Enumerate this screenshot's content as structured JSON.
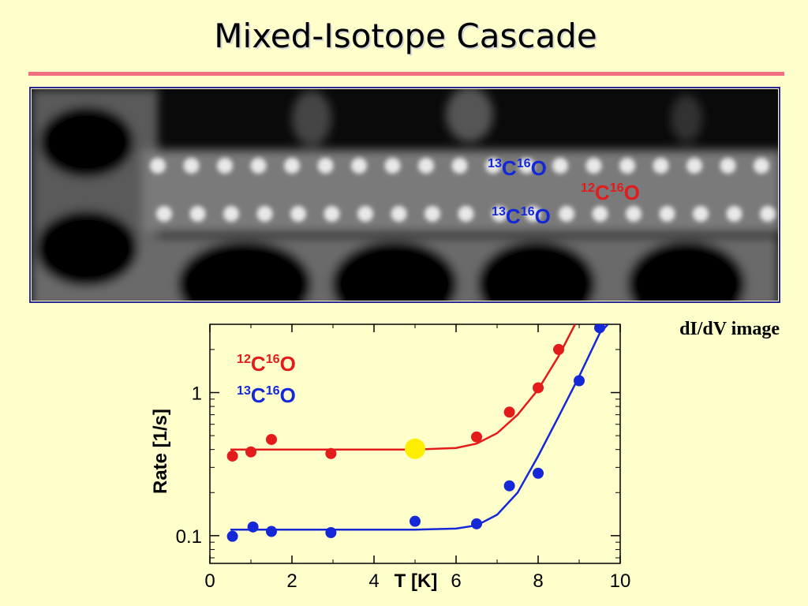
{
  "title": "Mixed-Isotope Cascade",
  "image": {
    "caption": "dI/dV image",
    "labels": [
      {
        "text": [
          "13",
          "C",
          "16",
          "O"
        ],
        "color": "#1428d8"
      },
      {
        "text": [
          "12",
          "C",
          "16",
          "O"
        ],
        "color": "#e31b1b"
      },
      {
        "text": [
          "13",
          "C",
          "16",
          "O"
        ],
        "color": "#1428d8"
      }
    ]
  },
  "chart_data": {
    "type": "scatter",
    "xlabel": "T [K]",
    "ylabel": "Rate [1/s]",
    "xlim": [
      0,
      10
    ],
    "xticks": [
      0,
      2,
      4,
      6,
      8,
      10
    ],
    "xminor": [
      1,
      3,
      5,
      7,
      9
    ],
    "ylim": [
      0.064,
      3
    ],
    "yscale": "log",
    "yticks": [
      0.1,
      1
    ],
    "yminor": [
      0.07,
      0.08,
      0.09,
      0.2,
      0.3,
      0.4,
      0.5,
      0.6,
      0.7,
      0.8,
      0.9,
      2,
      3
    ],
    "series": [
      {
        "name": [
          "12",
          "C",
          "16",
          "O"
        ],
        "color": "#e31b1b",
        "x": [
          0.55,
          1.0,
          1.5,
          2.95,
          6.5,
          7.3,
          8.0,
          8.5
        ],
        "values": [
          0.36,
          0.385,
          0.47,
          0.375,
          0.49,
          0.73,
          1.08,
          2.0
        ],
        "fit": {
          "x": [
            0.5,
            5,
            6,
            6.5,
            7,
            7.5,
            8,
            8.5,
            8.9
          ],
          "values": [
            0.4,
            0.4,
            0.41,
            0.44,
            0.52,
            0.7,
            1.05,
            1.8,
            3.0
          ]
        }
      },
      {
        "name": [
          "13",
          "C",
          "16",
          "O"
        ],
        "color": "#1428d8",
        "x": [
          0.55,
          1.05,
          1.5,
          2.95,
          5.0,
          6.5,
          7.3,
          8.0,
          9.0,
          9.5
        ],
        "values": [
          0.099,
          0.115,
          0.107,
          0.105,
          0.126,
          0.121,
          0.223,
          0.273,
          1.21,
          2.84
        ],
        "fit": {
          "x": [
            0.5,
            5,
            6,
            6.5,
            7,
            7.5,
            8,
            8.5,
            9,
            9.5,
            9.7
          ],
          "values": [
            0.11,
            0.11,
            0.112,
            0.118,
            0.14,
            0.2,
            0.36,
            0.68,
            1.3,
            2.6,
            3.0
          ]
        }
      }
    ],
    "highlight": {
      "x": 5.0,
      "y": 0.405,
      "color": "#ffee00"
    }
  }
}
